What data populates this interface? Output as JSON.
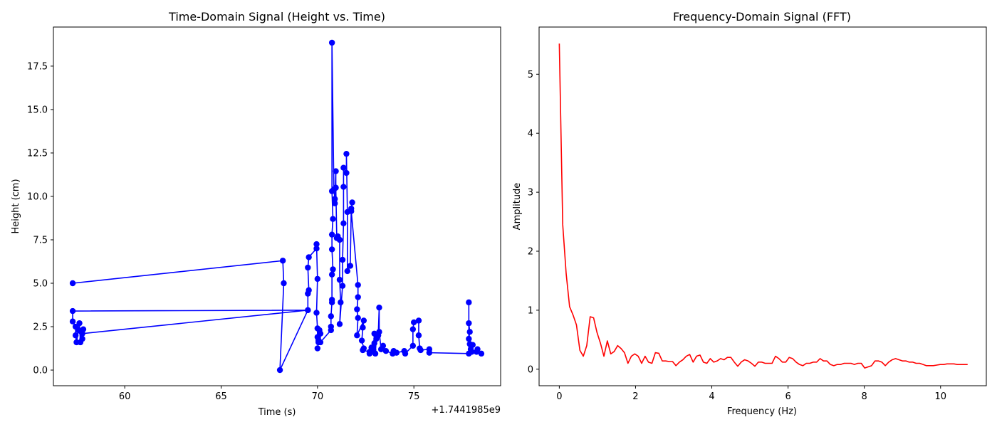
{
  "chart_data": [
    {
      "type": "line",
      "title": "Time-Domain Signal (Height vs. Time)",
      "xlabel": "Time (s)",
      "ylabel": "Height (cm)",
      "x_offset_label": "+1.7441985e9",
      "xlim": [
        56.3,
        79.5
      ],
      "ylim": [
        -0.9,
        19.75
      ],
      "xticks": [
        60,
        65,
        70,
        75
      ],
      "yticks": [
        0.0,
        2.5,
        5.0,
        7.5,
        10.0,
        12.5,
        15.0,
        17.5
      ],
      "ytick_labels": [
        "0.0",
        "2.5",
        "5.0",
        "7.5",
        "10.0",
        "12.5",
        "15.0",
        "17.5"
      ],
      "grid": false,
      "series": [
        {
          "color": "#0000ff",
          "marker": "circle",
          "points": [
            [
              57.3,
              5.0
            ],
            [
              68.2,
              6.3
            ],
            [
              68.25,
              5.0
            ],
            [
              68.05,
              0.0
            ],
            [
              69.5,
              3.45
            ],
            [
              57.3,
              3.4
            ],
            [
              57.3,
              2.8
            ],
            [
              57.45,
              2.5
            ],
            [
              57.45,
              2.0
            ],
            [
              57.5,
              1.6
            ],
            [
              57.6,
              2.3
            ],
            [
              57.65,
              2.7
            ],
            [
              57.7,
              1.6
            ],
            [
              57.75,
              2.2
            ],
            [
              57.8,
              1.8
            ],
            [
              57.85,
              2.35
            ],
            [
              57.8,
              2.1
            ],
            [
              69.5,
              3.45
            ],
            [
              69.5,
              4.4
            ],
            [
              69.55,
              4.6
            ],
            [
              69.5,
              5.9
            ],
            [
              69.55,
              6.5
            ],
            [
              69.95,
              7.0
            ],
            [
              69.95,
              7.25
            ],
            [
              70.0,
              5.25
            ],
            [
              69.95,
              3.3
            ],
            [
              70.0,
              2.4
            ],
            [
              70.0,
              1.9
            ],
            [
              70.05,
              1.6
            ],
            [
              70.0,
              1.25
            ],
            [
              70.05,
              1.7
            ],
            [
              70.1,
              2.3
            ],
            [
              70.15,
              2.1
            ],
            [
              70.15,
              1.6
            ],
            [
              70.7,
              2.3
            ],
            [
              70.7,
              2.5
            ],
            [
              70.7,
              3.1
            ],
            [
              70.75,
              3.9
            ],
            [
              70.75,
              4.05
            ],
            [
              70.75,
              5.5
            ],
            [
              70.8,
              5.8
            ],
            [
              70.75,
              6.95
            ],
            [
              70.75,
              7.8
            ],
            [
              70.8,
              8.7
            ],
            [
              70.75,
              10.3
            ],
            [
              70.75,
              18.85
            ],
            [
              70.85,
              10.4
            ],
            [
              70.9,
              9.85
            ],
            [
              70.9,
              9.6
            ],
            [
              70.95,
              11.45
            ],
            [
              70.95,
              10.5
            ],
            [
              71.0,
              7.6
            ],
            [
              71.05,
              7.7
            ],
            [
              71.15,
              7.5
            ],
            [
              71.15,
              5.2
            ],
            [
              71.2,
              3.9
            ],
            [
              71.15,
              2.65
            ],
            [
              71.3,
              4.85
            ],
            [
              71.3,
              6.35
            ],
            [
              71.35,
              8.45
            ],
            [
              71.35,
              10.55
            ],
            [
              71.35,
              11.65
            ],
            [
              71.5,
              11.35
            ],
            [
              71.5,
              12.45
            ],
            [
              71.55,
              9.1
            ],
            [
              71.55,
              5.7
            ],
            [
              71.7,
              6.0
            ],
            [
              71.75,
              9.3
            ],
            [
              71.8,
              9.65
            ],
            [
              71.75,
              9.15
            ],
            [
              72.1,
              4.9
            ],
            [
              72.1,
              4.2
            ],
            [
              72.05,
              3.5
            ],
            [
              72.1,
              3.0
            ],
            [
              72.05,
              2.0
            ],
            [
              72.4,
              2.85
            ],
            [
              72.35,
              2.45
            ],
            [
              72.3,
              1.7
            ],
            [
              72.4,
              1.25
            ],
            [
              72.35,
              1.15
            ],
            [
              72.7,
              1.05
            ],
            [
              72.7,
              0.95
            ],
            [
              72.8,
              1.3
            ],
            [
              72.9,
              1.15
            ],
            [
              72.95,
              2.1
            ],
            [
              72.95,
              1.55
            ],
            [
              73.0,
              0.95
            ],
            [
              73.05,
              1.8
            ],
            [
              73.15,
              2.0
            ],
            [
              73.2,
              3.6
            ],
            [
              73.2,
              2.2
            ],
            [
              73.3,
              1.2
            ],
            [
              73.4,
              1.4
            ],
            [
              73.55,
              1.1
            ],
            [
              73.9,
              0.95
            ],
            [
              73.95,
              1.1
            ],
            [
              74.1,
              1.0
            ],
            [
              74.5,
              1.1
            ],
            [
              74.55,
              0.95
            ],
            [
              74.95,
              1.4
            ],
            [
              74.95,
              2.35
            ],
            [
              75.0,
              2.75
            ],
            [
              75.25,
              2.85
            ],
            [
              75.25,
              2.0
            ],
            [
              75.3,
              1.25
            ],
            [
              75.35,
              1.15
            ],
            [
              75.8,
              1.2
            ],
            [
              75.8,
              1.0
            ],
            [
              77.85,
              0.95
            ],
            [
              77.85,
              3.9
            ],
            [
              77.85,
              2.7
            ],
            [
              77.9,
              2.2
            ],
            [
              77.85,
              1.8
            ],
            [
              77.9,
              1.5
            ],
            [
              77.95,
              1.2
            ],
            [
              78.05,
              1.45
            ],
            [
              78.0,
              1.05
            ],
            [
              78.3,
              1.2
            ],
            [
              78.25,
              1.05
            ],
            [
              78.5,
              0.95
            ]
          ]
        }
      ]
    },
    {
      "type": "line",
      "title": "Frequency-Domain Signal (FFT)",
      "xlabel": "Frequency (Hz)",
      "ylabel": "Amplitude",
      "xlim": [
        -0.53,
        11.2
      ],
      "ylim": [
        -0.28,
        5.8
      ],
      "xticks": [
        0,
        2,
        4,
        6,
        8,
        10
      ],
      "yticks": [
        0,
        1,
        2,
        3,
        4,
        5
      ],
      "grid": false,
      "series": [
        {
          "color": "#ff0000",
          "marker": "none",
          "points": [
            [
              0.0,
              5.52
            ],
            [
              0.09,
              2.45
            ],
            [
              0.18,
              1.62
            ],
            [
              0.27,
              1.06
            ],
            [
              0.36,
              0.92
            ],
            [
              0.45,
              0.75
            ],
            [
              0.54,
              0.32
            ],
            [
              0.63,
              0.22
            ],
            [
              0.72,
              0.4
            ],
            [
              0.81,
              0.89
            ],
            [
              0.9,
              0.87
            ],
            [
              0.99,
              0.62
            ],
            [
              1.08,
              0.44
            ],
            [
              1.17,
              0.22
            ],
            [
              1.26,
              0.48
            ],
            [
              1.35,
              0.26
            ],
            [
              1.44,
              0.3
            ],
            [
              1.53,
              0.4
            ],
            [
              1.62,
              0.35
            ],
            [
              1.71,
              0.28
            ],
            [
              1.8,
              0.1
            ],
            [
              1.89,
              0.22
            ],
            [
              1.98,
              0.26
            ],
            [
              2.07,
              0.22
            ],
            [
              2.16,
              0.1
            ],
            [
              2.25,
              0.22
            ],
            [
              2.34,
              0.12
            ],
            [
              2.43,
              0.1
            ],
            [
              2.52,
              0.28
            ],
            [
              2.61,
              0.27
            ],
            [
              2.7,
              0.14
            ],
            [
              2.79,
              0.14
            ],
            [
              2.88,
              0.13
            ],
            [
              2.97,
              0.13
            ],
            [
              3.06,
              0.06
            ],
            [
              3.15,
              0.12
            ],
            [
              3.24,
              0.16
            ],
            [
              3.33,
              0.22
            ],
            [
              3.42,
              0.25
            ],
            [
              3.51,
              0.12
            ],
            [
              3.6,
              0.22
            ],
            [
              3.69,
              0.24
            ],
            [
              3.78,
              0.12
            ],
            [
              3.87,
              0.1
            ],
            [
              3.96,
              0.18
            ],
            [
              4.05,
              0.12
            ],
            [
              4.14,
              0.14
            ],
            [
              4.23,
              0.18
            ],
            [
              4.32,
              0.16
            ],
            [
              4.41,
              0.2
            ],
            [
              4.5,
              0.2
            ],
            [
              4.59,
              0.12
            ],
            [
              4.68,
              0.05
            ],
            [
              4.77,
              0.12
            ],
            [
              4.86,
              0.16
            ],
            [
              4.95,
              0.14
            ],
            [
              5.04,
              0.1
            ],
            [
              5.13,
              0.05
            ],
            [
              5.22,
              0.12
            ],
            [
              5.31,
              0.12
            ],
            [
              5.4,
              0.1
            ],
            [
              5.49,
              0.1
            ],
            [
              5.58,
              0.1
            ],
            [
              5.67,
              0.22
            ],
            [
              5.76,
              0.18
            ],
            [
              5.85,
              0.12
            ],
            [
              5.94,
              0.12
            ],
            [
              6.03,
              0.2
            ],
            [
              6.12,
              0.18
            ],
            [
              6.21,
              0.12
            ],
            [
              6.3,
              0.08
            ],
            [
              6.39,
              0.06
            ],
            [
              6.48,
              0.1
            ],
            [
              6.57,
              0.1
            ],
            [
              6.66,
              0.12
            ],
            [
              6.75,
              0.12
            ],
            [
              6.84,
              0.18
            ],
            [
              6.93,
              0.14
            ],
            [
              7.02,
              0.14
            ],
            [
              7.11,
              0.08
            ],
            [
              7.2,
              0.06
            ],
            [
              7.29,
              0.08
            ],
            [
              7.38,
              0.08
            ],
            [
              7.47,
              0.1
            ],
            [
              7.56,
              0.1
            ],
            [
              7.65,
              0.1
            ],
            [
              7.74,
              0.08
            ],
            [
              7.83,
              0.1
            ],
            [
              7.92,
              0.1
            ],
            [
              8.01,
              0.02
            ],
            [
              8.1,
              0.04
            ],
            [
              8.19,
              0.06
            ],
            [
              8.28,
              0.14
            ],
            [
              8.37,
              0.14
            ],
            [
              8.46,
              0.12
            ],
            [
              8.55,
              0.06
            ],
            [
              8.64,
              0.12
            ],
            [
              8.73,
              0.16
            ],
            [
              8.82,
              0.18
            ],
            [
              8.91,
              0.16
            ],
            [
              9.0,
              0.14
            ],
            [
              9.09,
              0.14
            ],
            [
              9.18,
              0.12
            ],
            [
              9.27,
              0.12
            ],
            [
              9.36,
              0.1
            ],
            [
              9.45,
              0.1
            ],
            [
              9.54,
              0.08
            ],
            [
              9.63,
              0.06
            ],
            [
              9.72,
              0.06
            ],
            [
              9.81,
              0.06
            ],
            [
              9.9,
              0.07
            ],
            [
              9.99,
              0.08
            ],
            [
              10.08,
              0.08
            ],
            [
              10.17,
              0.09
            ],
            [
              10.26,
              0.09
            ],
            [
              10.35,
              0.09
            ],
            [
              10.44,
              0.08
            ],
            [
              10.53,
              0.08
            ],
            [
              10.62,
              0.08
            ],
            [
              10.71,
              0.08
            ]
          ]
        }
      ]
    }
  ]
}
